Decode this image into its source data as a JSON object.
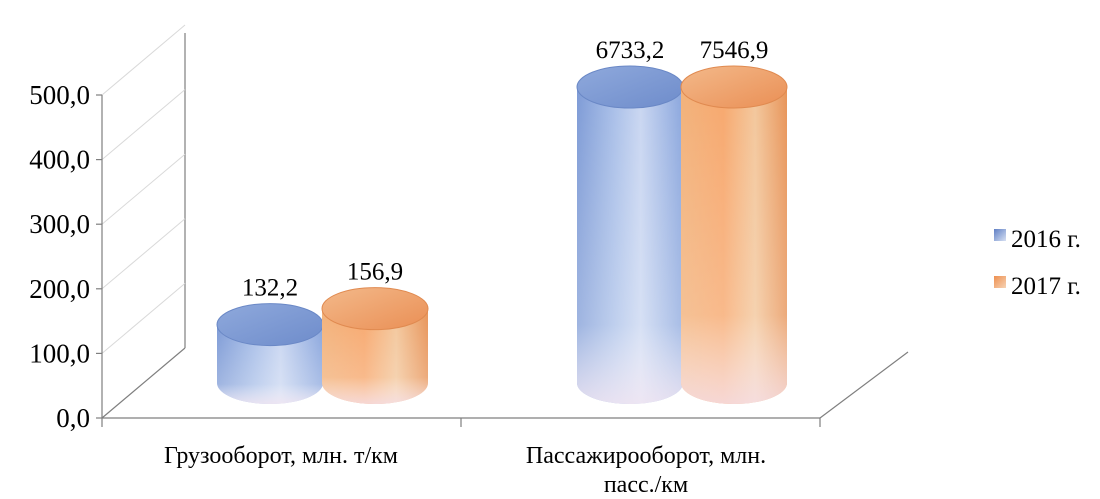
{
  "chart_data": {
    "type": "bar",
    "style": "3d-cylinder",
    "categories": [
      "Грузооборот, млн. т/км",
      "Пассажирооборот, млн. пасс./км"
    ],
    "series": [
      {
        "name": "2016 г.",
        "values": [
          132.2,
          6733.2
        ],
        "data_labels": [
          "132,2",
          "6733,2"
        ],
        "color": "#6f8fcf"
      },
      {
        "name": "2017 г.",
        "values": [
          156.9,
          7546.9
        ],
        "data_labels": [
          "156,9",
          "7546,9"
        ],
        "color": "#f0a46b"
      }
    ],
    "yticks": [
      "0,0",
      "100,0",
      "200,0",
      "300,0",
      "400,0",
      "500,0"
    ],
    "ylim": [
      0,
      500
    ],
    "bars_clipped_at_axis_max": true,
    "legend_position": "right",
    "grid": true,
    "title": "",
    "xlabel": "",
    "ylabel": ""
  }
}
